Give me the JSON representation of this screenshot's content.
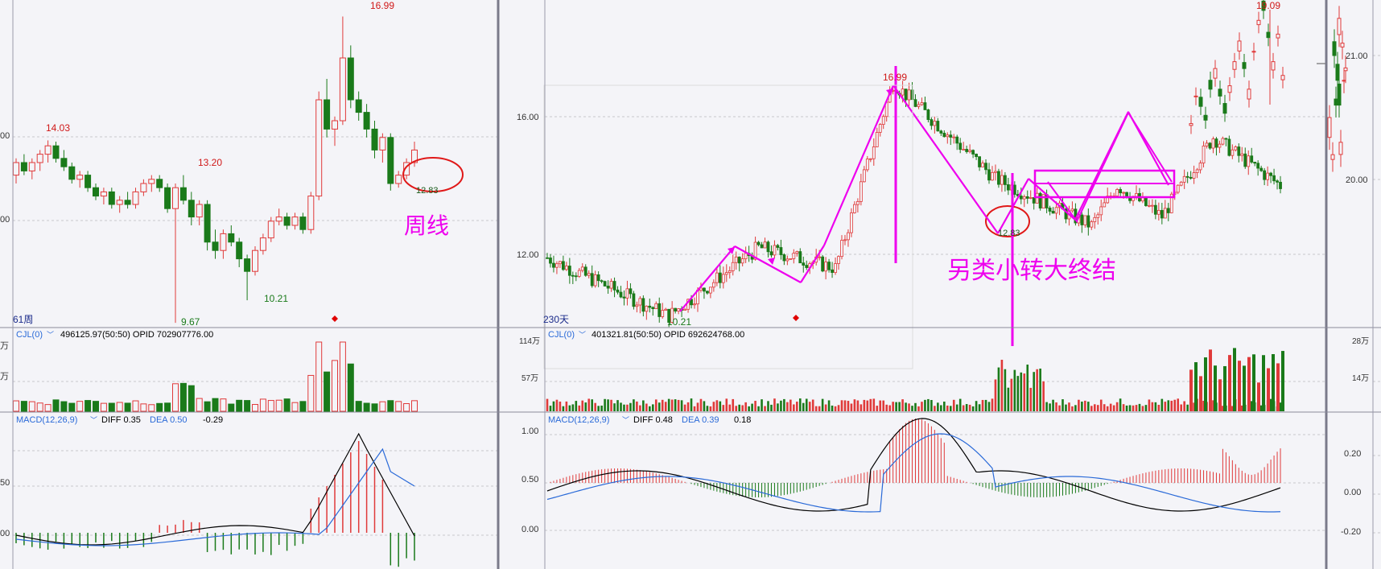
{
  "colors": {
    "up": "#e03a3a",
    "down": "#1a7a1a",
    "annot": "#ee00ee",
    "grid": "#c8c8cc",
    "bg": "#f4f4f8"
  },
  "left_panel": {
    "period_label": "61周",
    "high_label": "16.99",
    "label_14_03": "14.03",
    "label_13_20": "13.20",
    "label_10_21": "10.21",
    "low_label": "9.67",
    "circle_label": "12.83",
    "weekly_note": "周线",
    "cjl_title": "CJL(0)",
    "cjl_values": "496125.97(50:50)  OPID 702907776.00",
    "macd_title": "MACD(12,26,9)",
    "macd_diff": "DIFF 0.35",
    "macd_dea": "DEA 0.50",
    "macd_val": "-0.29",
    "price_ticks": [
      "00",
      "00"
    ],
    "vol_ticks": [
      "万",
      "万"
    ],
    "macd_ticks": [
      "50",
      "00"
    ]
  },
  "mid_panel": {
    "period_label": "230天",
    "high_label": "16.99",
    "low_label": "10.21",
    "circle_label": "12.83",
    "annotation": "另类小转大终结",
    "cjl_title": "CJL(0)",
    "cjl_values": "401321.81(50:50)  OPID 692624768.00",
    "macd_title": "MACD(12,26,9)",
    "macd_diff": "DIFF 0.48",
    "macd_dea": "DEA 0.39",
    "macd_val": "0.18",
    "price_ticks": [
      "16.00",
      "12.00"
    ],
    "vol_ticks": [
      "114万",
      "57万"
    ],
    "macd_ticks": [
      "1.00",
      "0.50",
      "0.00"
    ]
  },
  "right_panel": {
    "high_label": "19.09",
    "price_ticks": [
      "21.00",
      "20.00"
    ],
    "vol_ticks": [
      "28万",
      "14万"
    ],
    "macd_ticks": [
      "0.20",
      "0.00",
      "-0.20"
    ]
  },
  "chart_data": [
    {
      "type": "candlestick",
      "title": "61周",
      "period": "weekly",
      "annotations": [
        "14.03",
        "13.20",
        "9.67",
        "10.21",
        "16.99",
        "12.83",
        "周线"
      ],
      "ohlc_approx": [
        [
          13.2,
          13.6,
          13.0,
          13.5
        ],
        [
          13.5,
          13.7,
          13.2,
          13.3
        ],
        [
          13.3,
          13.6,
          13.1,
          13.5
        ],
        [
          13.5,
          13.8,
          13.3,
          13.7
        ],
        [
          13.7,
          14.03,
          13.5,
          13.9
        ],
        [
          13.9,
          14.0,
          13.5,
          13.6
        ],
        [
          13.6,
          13.8,
          13.3,
          13.4
        ],
        [
          13.4,
          13.5,
          13.0,
          13.1
        ],
        [
          13.1,
          13.3,
          12.9,
          13.2
        ],
        [
          13.2,
          13.3,
          12.8,
          12.9
        ],
        [
          12.9,
          13.0,
          12.6,
          12.7
        ],
        [
          12.7,
          12.9,
          12.5,
          12.8
        ],
        [
          12.8,
          12.9,
          12.4,
          12.5
        ],
        [
          12.5,
          12.7,
          12.3,
          12.6
        ],
        [
          12.6,
          12.8,
          12.4,
          12.5
        ],
        [
          12.5,
          12.9,
          12.4,
          12.8
        ],
        [
          12.8,
          13.1,
          12.7,
          13.0
        ],
        [
          13.0,
          13.2,
          12.8,
          13.1
        ],
        [
          13.1,
          13.2,
          12.8,
          12.9
        ],
        [
          12.9,
          13.0,
          12.3,
          12.4
        ],
        [
          12.4,
          13.0,
          9.67,
          12.9
        ],
        [
          12.9,
          13.2,
          12.5,
          12.6
        ],
        [
          12.6,
          12.8,
          12.0,
          12.2
        ],
        [
          12.2,
          12.6,
          12.0,
          12.5
        ],
        [
          12.5,
          12.6,
          11.4,
          11.6
        ],
        [
          11.6,
          11.9,
          11.2,
          11.4
        ],
        [
          11.4,
          11.9,
          11.2,
          11.8
        ],
        [
          11.8,
          12.0,
          11.5,
          11.6
        ],
        [
          11.6,
          11.7,
          11.0,
          11.2
        ],
        [
          11.2,
          11.3,
          10.21,
          10.9
        ],
        [
          10.9,
          11.5,
          10.8,
          11.4
        ],
        [
          11.4,
          11.8,
          11.3,
          11.7
        ],
        [
          11.7,
          12.2,
          11.6,
          12.1
        ],
        [
          12.1,
          12.4,
          12.0,
          12.2
        ],
        [
          12.2,
          12.3,
          11.9,
          12.0
        ],
        [
          12.0,
          12.3,
          11.9,
          12.2
        ],
        [
          12.2,
          12.3,
          11.8,
          11.9
        ],
        [
          11.9,
          12.8,
          11.8,
          12.7
        ],
        [
          12.7,
          15.2,
          12.6,
          15.0
        ],
        [
          15.0,
          15.5,
          14.1,
          14.3
        ],
        [
          14.3,
          14.6,
          13.9,
          14.5
        ],
        [
          14.5,
          16.99,
          14.4,
          16.0
        ],
        [
          16.0,
          16.3,
          14.8,
          15.0
        ],
        [
          15.0,
          15.2,
          14.5,
          14.7
        ],
        [
          14.7,
          14.9,
          14.1,
          14.3
        ],
        [
          14.3,
          14.5,
          13.6,
          13.8
        ],
        [
          13.8,
          14.2,
          13.5,
          14.1
        ],
        [
          14.1,
          14.2,
          12.83,
          13.0
        ],
        [
          13.0,
          13.3,
          12.9,
          13.2
        ],
        [
          13.2,
          13.6,
          13.1,
          13.5
        ],
        [
          13.5,
          14.0,
          13.4,
          13.8
        ]
      ]
    },
    {
      "type": "candlestick",
      "title": "230天",
      "period": "daily",
      "annotations": [
        "10.21",
        "16.99",
        "12.83",
        "另类小转大终结"
      ],
      "key_points": [
        {
          "x": "start",
          "y": 11.9
        },
        {
          "x": "low",
          "y": 10.21
        },
        {
          "x": "rise",
          "y": 12.2
        },
        {
          "x": "pullback",
          "y": 11.6
        },
        {
          "x": "peak",
          "y": 16.99
        },
        {
          "x": "decline",
          "y": 14.2
        },
        {
          "x": "low2",
          "y": 12.83
        },
        {
          "x": "bounce",
          "y": 14.0
        },
        {
          "x": "dip",
          "y": 13.1
        },
        {
          "x": "rally",
          "y": 15.4
        },
        {
          "x": "end",
          "y": 14.0
        }
      ],
      "ylim": [
        10.0,
        17.5
      ],
      "yticks": [
        12.0,
        16.0
      ]
    }
  ]
}
